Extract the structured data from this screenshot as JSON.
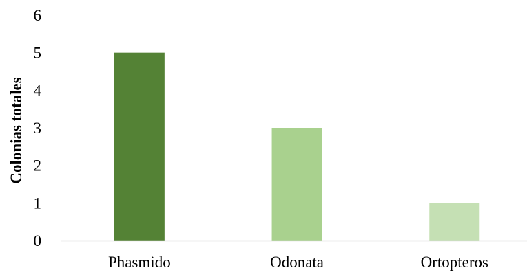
{
  "chart_data": {
    "type": "bar",
    "title": "",
    "xlabel": "",
    "ylabel": "Colonias totales",
    "categories": [
      "Phasmido",
      "Odonata",
      "Ortopteros"
    ],
    "values": [
      5,
      3,
      1
    ],
    "bar_colors": [
      "#548235",
      "#a9d18e",
      "#c5e0b4"
    ],
    "ylim": [
      0,
      6
    ],
    "yticks": [
      "0",
      "1",
      "2",
      "3",
      "4",
      "5",
      "6"
    ],
    "grid": false,
    "legend": "none",
    "axis_color": "#d9d9d9"
  }
}
